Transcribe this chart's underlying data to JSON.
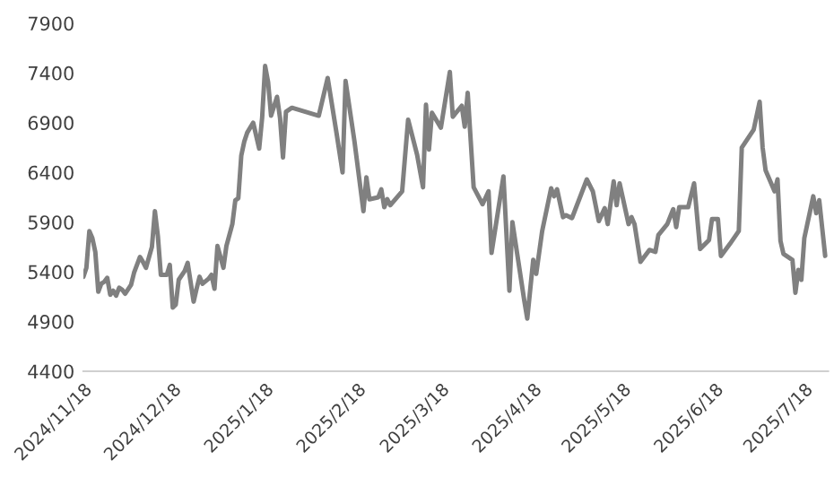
{
  "chart_data": {
    "type": "line",
    "x": [
      "2024-11-18",
      "2024-11-19",
      "2024-11-20",
      "2024-11-21",
      "2024-11-22",
      "2024-11-23",
      "2024-11-24",
      "2024-11-25",
      "2024-11-26",
      "2024-11-27",
      "2024-11-28",
      "2024-11-29",
      "2024-11-30",
      "2024-12-01",
      "2024-12-02",
      "2024-12-04",
      "2024-12-05",
      "2024-12-07",
      "2024-12-08",
      "2024-12-09",
      "2024-12-11",
      "2024-12-12",
      "2024-12-13",
      "2024-12-14",
      "2024-12-15",
      "2024-12-16",
      "2024-12-17",
      "2024-12-18",
      "2024-12-19",
      "2024-12-20",
      "2024-12-22",
      "2024-12-23",
      "2024-12-25",
      "2024-12-26",
      "2024-12-27",
      "2024-12-28",
      "2024-12-30",
      "2024-12-31",
      "2025-01-01",
      "2025-01-02",
      "2025-01-04",
      "2025-01-05",
      "2025-01-07",
      "2025-01-08",
      "2025-01-09",
      "2025-01-10",
      "2025-01-11",
      "2025-01-12",
      "2025-01-14",
      "2025-01-16",
      "2025-01-17",
      "2025-01-18",
      "2025-01-19",
      "2025-01-20",
      "2025-01-22",
      "2025-01-23",
      "2025-01-24",
      "2025-01-25",
      "2025-01-27",
      "2025-02-05",
      "2025-02-08",
      "2025-02-11",
      "2025-02-13",
      "2025-02-14",
      "2025-02-17",
      "2025-02-20",
      "2025-02-21",
      "2025-02-22",
      "2025-02-25",
      "2025-02-26",
      "2025-02-27",
      "2025-02-28",
      "2025-03-01",
      "2025-03-05",
      "2025-03-07",
      "2025-03-10",
      "2025-03-12",
      "2025-03-13",
      "2025-03-14",
      "2025-03-15",
      "2025-03-18",
      "2025-03-21",
      "2025-03-22",
      "2025-03-25",
      "2025-03-26",
      "2025-03-27",
      "2025-03-29",
      "2025-04-01",
      "2025-04-03",
      "2025-04-04",
      "2025-04-08",
      "2025-04-10",
      "2025-04-11",
      "2025-04-15",
      "2025-04-16",
      "2025-04-18",
      "2025-04-19",
      "2025-04-21",
      "2025-04-24",
      "2025-04-25",
      "2025-04-26",
      "2025-04-28",
      "2025-04-29",
      "2025-05-01",
      "2025-05-06",
      "2025-05-08",
      "2025-05-10",
      "2025-05-12",
      "2025-05-13",
      "2025-05-15",
      "2025-05-16",
      "2025-05-17",
      "2025-05-20",
      "2025-05-21",
      "2025-05-22",
      "2025-05-24",
      "2025-05-27",
      "2025-05-29",
      "2025-05-30",
      "2025-06-02",
      "2025-06-04",
      "2025-06-05",
      "2025-06-06",
      "2025-06-09",
      "2025-06-11",
      "2025-06-13",
      "2025-06-16",
      "2025-06-17",
      "2025-06-19",
      "2025-06-20",
      "2025-06-23",
      "2025-06-26",
      "2025-06-27",
      "2025-07-01",
      "2025-07-03",
      "2025-07-04",
      "2025-07-05",
      "2025-07-08",
      "2025-07-09",
      "2025-07-10",
      "2025-07-11",
      "2025-07-14",
      "2025-07-15",
      "2025-07-16",
      "2025-07-17",
      "2025-07-18",
      "2025-07-21",
      "2025-07-22",
      "2025-07-23",
      "2025-07-25"
    ],
    "series": [
      {
        "color": "#808080",
        "values": [
          5350,
          5440,
          5810,
          5740,
          5600,
          5200,
          5280,
          5300,
          5340,
          5170,
          5210,
          5160,
          5240,
          5220,
          5180,
          5270,
          5390,
          5550,
          5500,
          5440,
          5650,
          6010,
          5760,
          5370,
          5370,
          5370,
          5470,
          5040,
          5070,
          5320,
          5410,
          5490,
          5100,
          5230,
          5350,
          5280,
          5330,
          5370,
          5230,
          5660,
          5440,
          5660,
          5880,
          6120,
          6140,
          6570,
          6710,
          6800,
          6900,
          6640,
          6950,
          7470,
          7310,
          6970,
          7160,
          6950,
          6550,
          7010,
          7050,
          6970,
          7350,
          6790,
          6400,
          7320,
          6710,
          6010,
          6350,
          6130,
          6150,
          6230,
          6050,
          6130,
          6070,
          6210,
          6930,
          6580,
          6250,
          7080,
          6630,
          7000,
          6850,
          7410,
          6960,
          7070,
          6860,
          7200,
          6250,
          6080,
          6210,
          5590,
          6360,
          5210,
          5900,
          5110,
          4930,
          5520,
          5380,
          5810,
          6240,
          6160,
          6230,
          5950,
          5970,
          5940,
          6330,
          6210,
          5910,
          6040,
          5880,
          6310,
          6070,
          6290,
          5880,
          5950,
          5880,
          5500,
          5620,
          5600,
          5770,
          5880,
          6030,
          5850,
          6050,
          6050,
          6290,
          5630,
          5720,
          5930,
          5930,
          5560,
          5680,
          5810,
          6650,
          6830,
          7110,
          6650,
          6420,
          6210,
          6330,
          5710,
          5580,
          5520,
          5190,
          5420,
          5320,
          5740,
          6160,
          5990,
          6120,
          5560
        ]
      }
    ],
    "xlim": [
      "2024-11-18",
      "2025-07-26"
    ],
    "xticks": [
      {
        "value": "2024-11-18",
        "label": "2024/11/18"
      },
      {
        "value": "2024-12-18",
        "label": "2024/12/18"
      },
      {
        "value": "2025-01-18",
        "label": "2025/1/18"
      },
      {
        "value": "2025-02-18",
        "label": "2025/2/18"
      },
      {
        "value": "2025-03-18",
        "label": "2025/3/18"
      },
      {
        "value": "2025-04-18",
        "label": "2025/4/18"
      },
      {
        "value": "2025-05-18",
        "label": "2025/5/18"
      },
      {
        "value": "2025-06-18",
        "label": "2025/6/18"
      },
      {
        "value": "2025-07-18",
        "label": "2025/7/18"
      }
    ],
    "ylim": [
      4400,
      7900
    ],
    "yticks": [
      4400,
      4900,
      5400,
      5900,
      6400,
      6900,
      7400,
      7900
    ],
    "grid": false,
    "legend": false,
    "marker": "none",
    "line_style": "solid"
  }
}
